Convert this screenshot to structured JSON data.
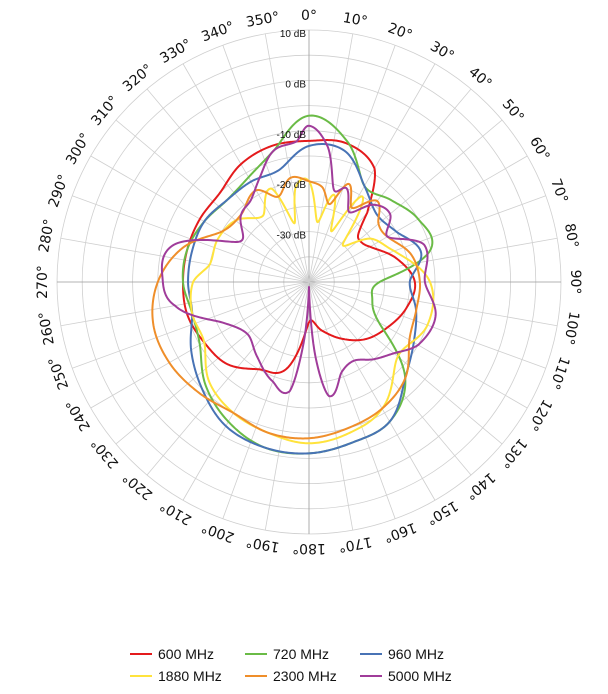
{
  "chart_data": {
    "type": "polar-line",
    "angle_unit": "deg",
    "angle_ticks": [
      0,
      10,
      20,
      30,
      40,
      50,
      60,
      70,
      80,
      90,
      100,
      110,
      120,
      130,
      140,
      150,
      160,
      170,
      180,
      190,
      200,
      210,
      220,
      230,
      240,
      250,
      260,
      270,
      280,
      290,
      300,
      310,
      320,
      330,
      340,
      350
    ],
    "angle_tick_labels": [
      "0°",
      "10°",
      "20°",
      "30°",
      "40°",
      "50°",
      "60°",
      "70°",
      "80°",
      "90°",
      "100°",
      "110°",
      "120°",
      "130°",
      "140°",
      "150°",
      "160°",
      "170°",
      "180°",
      "190°",
      "200°",
      "210°",
      "220°",
      "230°",
      "240°",
      "250°",
      "260°",
      "270°",
      "280°",
      "290°",
      "300°",
      "310°",
      "320°",
      "330°",
      "340°",
      "350°"
    ],
    "r_range": [
      -40,
      10
    ],
    "r_ticks": [
      10,
      0,
      -10,
      -20,
      -30
    ],
    "r_tick_labels": [
      "10 dB",
      "0 dB",
      "-10 dB",
      "-20 dB",
      "-30 dB"
    ],
    "grid": true,
    "legend_position": "bottom",
    "series": [
      {
        "name": "600 MHz",
        "color": "#e41a1c",
        "angles": [
          0,
          15,
          30,
          40,
          45,
          50,
          60,
          75,
          90,
          105,
          120,
          135,
          150,
          165,
          180,
          195,
          210,
          225,
          240,
          255,
          270,
          285,
          300,
          315,
          330,
          345
        ],
        "values": [
          -12,
          -11.5,
          -14,
          -22,
          -26,
          -27,
          -26,
          -22,
          -19,
          -20,
          -22,
          -24,
          -27,
          -30,
          -32,
          -22,
          -20,
          -17,
          -16,
          -15,
          -15,
          -15,
          -15,
          -15,
          -13,
          -12
        ]
      },
      {
        "name": "720 MHz",
        "color": "#6abb46",
        "angles": [
          0,
          15,
          30,
          45,
          60,
          75,
          90,
          105,
          120,
          135,
          150,
          165,
          180,
          195,
          210,
          225,
          240,
          255,
          270,
          285,
          300,
          315,
          330,
          345
        ],
        "values": [
          -7,
          -11,
          -18,
          -17,
          -15,
          -15,
          -26,
          -27,
          -24,
          -13,
          -8,
          -7,
          -6,
          -6,
          -8,
          -11,
          -15,
          -16,
          -15,
          -15,
          -16,
          -17,
          -16,
          -13
        ]
      },
      {
        "name": "960 MHz",
        "color": "#4873b5",
        "angles": [
          0,
          15,
          30,
          45,
          60,
          75,
          90,
          105,
          120,
          135,
          150,
          165,
          180,
          195,
          210,
          225,
          240,
          255,
          270,
          285,
          300,
          315,
          330,
          345
        ],
        "values": [
          -13,
          -13,
          -18,
          -21,
          -20,
          -17,
          -20,
          -18,
          -16,
          -13,
          -8,
          -7,
          -6,
          -6,
          -7,
          -10,
          -13,
          -16,
          -16,
          -16,
          -16,
          -17,
          -17,
          -17
        ]
      },
      {
        "name": "1880 MHz",
        "color": "#ffe33c",
        "angles": [
          0,
          8,
          16,
          24,
          32,
          42,
          55,
          70,
          90,
          110,
          130,
          150,
          165,
          180,
          195,
          210,
          225,
          240,
          255,
          270,
          280,
          295,
          310,
          325,
          338,
          346,
          352
        ],
        "values": [
          -20,
          -28,
          -22,
          -29,
          -20,
          -30,
          -25,
          -22,
          -16,
          -15,
          -17,
          -11,
          -9,
          -8,
          -9,
          -10,
          -12,
          -16,
          -16,
          -17,
          -20,
          -20,
          -21,
          -24,
          -20,
          -28,
          -21
        ]
      },
      {
        "name": "2300 MHz",
        "color": "#ef8e2a",
        "angles": [
          0,
          8,
          15,
          22,
          30,
          40,
          50,
          60,
          75,
          90,
          105,
          120,
          135,
          150,
          165,
          180,
          195,
          210,
          225,
          240,
          255,
          270,
          285,
          300,
          315,
          330,
          340,
          350
        ],
        "values": [
          -20,
          -21,
          -24,
          -19,
          -23,
          -19,
          -22,
          -22,
          -19,
          -18,
          -18,
          -17,
          -13,
          -11,
          -10,
          -9,
          -9,
          -10,
          -9,
          -8,
          -8,
          -10,
          -14,
          -20,
          -21,
          -19,
          -22,
          -19
        ]
      },
      {
        "name": "5000 MHz",
        "color": "#a03c9a",
        "angles": [
          0,
          8,
          15,
          22,
          30,
          40,
          50,
          60,
          72,
          90,
          105,
          120,
          130,
          140,
          150,
          160,
          170,
          175,
          180,
          185,
          190,
          200,
          215,
          230,
          245,
          260,
          270,
          285,
          300,
          315,
          325,
          335,
          345,
          355
        ],
        "values": [
          -9,
          -13,
          -21,
          -20,
          -24,
          -20,
          -19,
          -22,
          -16,
          -17,
          -14,
          -15,
          -18,
          -20,
          -22,
          -21,
          -17,
          -25,
          -39,
          -28,
          -18,
          -19,
          -22,
          -24,
          -21,
          -13,
          -11,
          -12,
          -24,
          -21,
          -20,
          -17,
          -13,
          -12
        ]
      }
    ]
  }
}
